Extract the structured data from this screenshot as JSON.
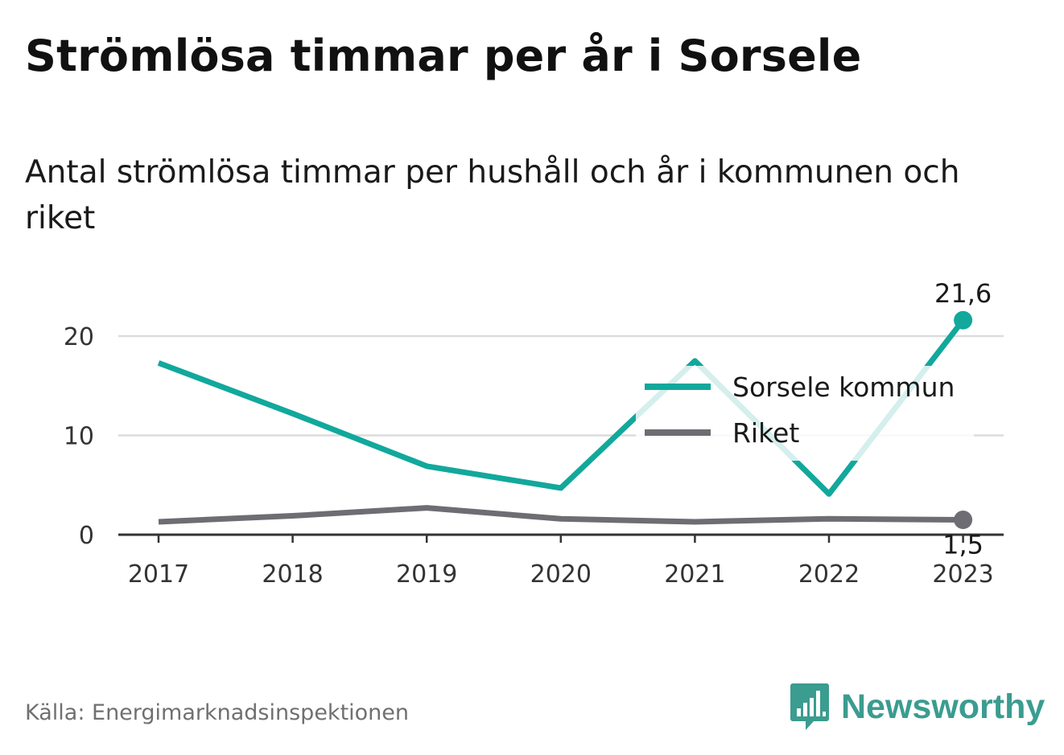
{
  "title": "Strömlösa timmar per år i Sorsele",
  "subtitle": "Antal strömlösa timmar per hushåll och år i kommunen och riket",
  "source": "Källa: Energimarknadsinspektionen",
  "brand": {
    "name": "Newsworthy",
    "icon": "newsworthy-logo-icon",
    "color": "#3b9c90"
  },
  "chart_data": {
    "type": "line",
    "x": [
      "2017",
      "2018",
      "2019",
      "2020",
      "2021",
      "2022",
      "2023"
    ],
    "ylim": [
      0,
      20
    ],
    "yticks": [
      "0",
      "10",
      "20"
    ],
    "grid": true,
    "legend_position": "right",
    "series": [
      {
        "name": "Sorsele kommun",
        "color": "#12a89c",
        "values": [
          17.3,
          12.2,
          6.9,
          4.7,
          17.5,
          4.1,
          21.6
        ],
        "end_label": "21,6"
      },
      {
        "name": "Riket",
        "color": "#6e6d73",
        "values": [
          1.3,
          1.9,
          2.7,
          1.6,
          1.3,
          1.6,
          1.5
        ],
        "end_label": "1,5"
      }
    ]
  }
}
